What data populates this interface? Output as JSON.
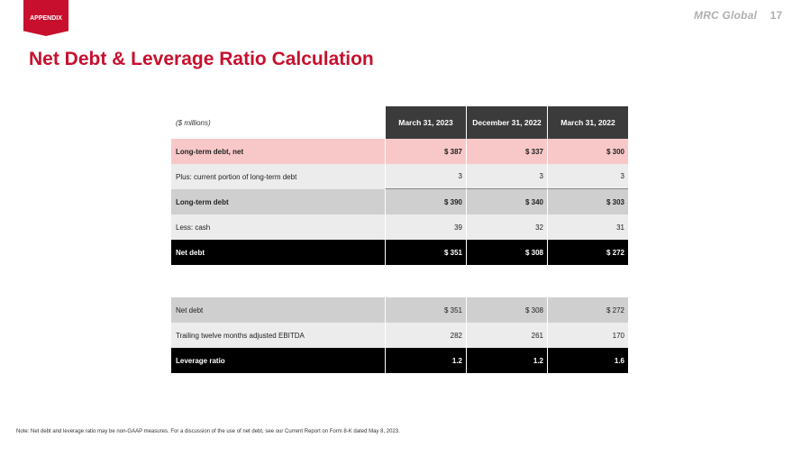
{
  "header": {
    "section_tag": "APPENDIX",
    "brand": "MRC Global",
    "page_number": "17"
  },
  "title": "Net Debt & Leverage Ratio Calculation",
  "table1": {
    "units_label": "($ millions)",
    "columns": [
      "March 31, 2023",
      "December 31, 2022",
      "March 31, 2022"
    ],
    "rows": [
      {
        "label": "Long-term debt, net",
        "values": [
          "$ 387",
          "$ 337",
          "$ 300"
        ]
      },
      {
        "label": "Plus: current portion of long-term debt",
        "values": [
          "3",
          "3",
          "3"
        ]
      },
      {
        "label": "Long-term debt",
        "values": [
          "$ 390",
          "$ 340",
          "$ 303"
        ]
      },
      {
        "label": "Less: cash",
        "values": [
          "39",
          "32",
          "31"
        ]
      },
      {
        "label": "Net debt",
        "values": [
          "$ 351",
          "$ 308",
          "$ 272"
        ]
      }
    ]
  },
  "table2": {
    "rows": [
      {
        "label": "Net debt",
        "values": [
          "$ 351",
          "$ 308",
          "$ 272"
        ]
      },
      {
        "label": "Trailing twelve months adjusted EBITDA",
        "values": [
          "282",
          "261",
          "170"
        ]
      },
      {
        "label": "Leverage ratio",
        "values": [
          "1.2",
          "1.2",
          "1.6"
        ]
      }
    ]
  },
  "footnote": "Note: Net debt and leverage ratio may be non-GAAP measures. For a discussion of the use of net debt, see our Current Report on Form 8-K dated May 8, 2023."
}
